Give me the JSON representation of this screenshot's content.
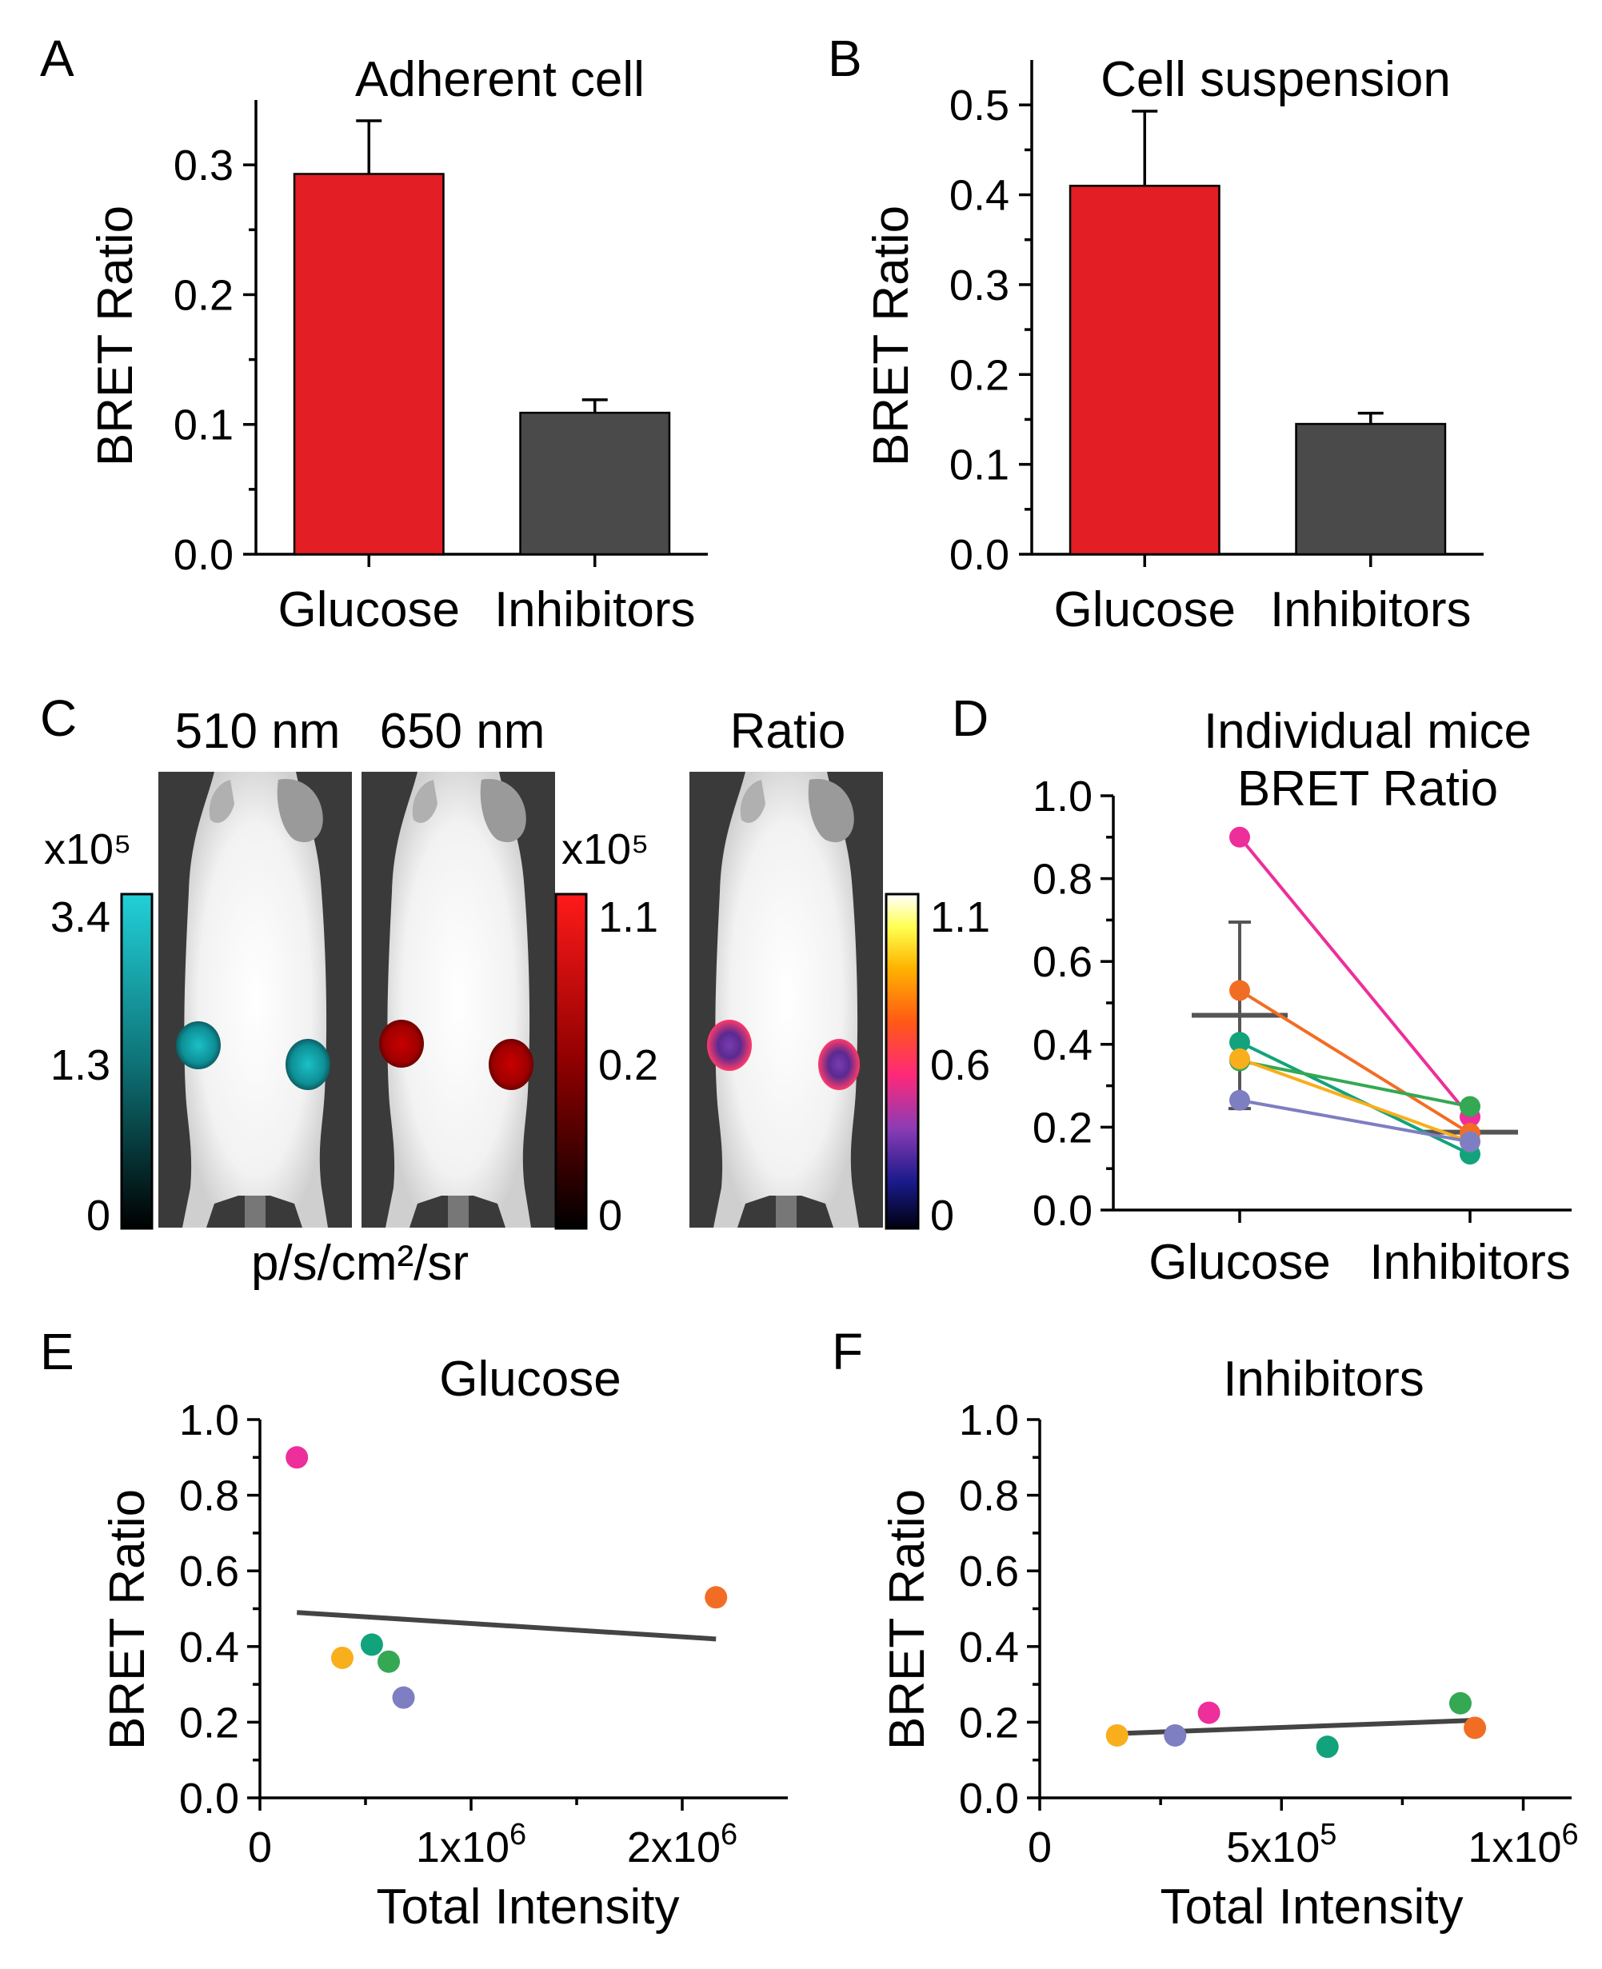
{
  "colors": {
    "glucose_bar": "#e31e24",
    "inhibitors_bar": "#4a4a4a",
    "fit_line": "#444444",
    "mouse_1": "#ee2e9a",
    "mouse_2": "#f26d24",
    "mouse_3": "#12a37c",
    "mouse_4": "#34a853",
    "mouse_5": "#f9ae1b",
    "mouse_6": "#7e7ec2",
    "cbar_510": "#20c8d0",
    "cbar_650": "#ff1a1a"
  },
  "chart_data": [
    {
      "panel": "A",
      "type": "bar",
      "title": "Adherent cell",
      "ylabel": "BRET Ratio",
      "xlabel": "",
      "categories": [
        "Glucose",
        "Inhibitors"
      ],
      "values": [
        0.293,
        0.109
      ],
      "errors": [
        0.041,
        0.01
      ],
      "ylim": [
        0,
        0.35
      ],
      "yticks": [
        "0.0",
        "0.1",
        "0.2",
        "0.3"
      ],
      "grid": false
    },
    {
      "panel": "B",
      "type": "bar",
      "title": "Cell suspension",
      "ylabel": "BRET Ratio",
      "xlabel": "",
      "categories": [
        "Glucose",
        "Inhibitors"
      ],
      "values": [
        0.41,
        0.145
      ],
      "errors": [
        0.083,
        0.012
      ],
      "ylim": [
        0,
        0.55
      ],
      "yticks": [
        "0.0",
        "0.1",
        "0.2",
        "0.3",
        "0.4",
        "0.5"
      ],
      "grid": false
    },
    {
      "panel": "C",
      "type": "image",
      "titles": [
        "510 nm",
        "650 nm",
        "Ratio"
      ],
      "colorbars": [
        {
          "exponent_label": "x10⁵",
          "ticks": [
            "3.4",
            "1.3",
            "0"
          ]
        },
        {
          "exponent_label": "x10⁵",
          "ticks": [
            "1.1",
            "0.2",
            "0"
          ]
        },
        {
          "exponent_label": "",
          "ticks": [
            "1.1",
            "0.6",
            "0"
          ]
        }
      ],
      "units": "p/s/cm²/sr"
    },
    {
      "panel": "D",
      "type": "line",
      "title": "Individual mice BRET Ratio",
      "title_lines": [
        "Individual mice",
        "BRET Ratio"
      ],
      "categories": [
        "Glucose",
        "Inhibitors"
      ],
      "ylim": [
        0,
        1.0
      ],
      "yticks": [
        "0.0",
        "0.2",
        "0.4",
        "0.6",
        "0.8",
        "1.0"
      ],
      "series": [
        {
          "color_key": "mouse_1",
          "values": [
            0.9,
            0.225
          ]
        },
        {
          "color_key": "mouse_2",
          "values": [
            0.53,
            0.185
          ]
        },
        {
          "color_key": "mouse_3",
          "values": [
            0.405,
            0.135
          ]
        },
        {
          "color_key": "mouse_4",
          "values": [
            0.36,
            0.25
          ]
        },
        {
          "color_key": "mouse_5",
          "values": [
            0.365,
            0.165
          ]
        },
        {
          "color_key": "mouse_6",
          "values": [
            0.265,
            0.165
          ]
        }
      ],
      "mean": [
        0.47,
        0.188
      ],
      "sd_glucose": [
        0.245,
        0.695
      ]
    },
    {
      "panel": "E",
      "type": "scatter",
      "title": "Glucose",
      "xlabel": "Total Intensity",
      "ylabel": "BRET Ratio",
      "xlim": [
        0,
        2500000
      ],
      "ylim": [
        0,
        1.0
      ],
      "xticks": [
        {
          "value": 0,
          "label": "0",
          "exp": ""
        },
        {
          "value": 1000000,
          "label": "1x10",
          "exp": "6"
        },
        {
          "value": 2000000,
          "label": "2x10",
          "exp": "6"
        }
      ],
      "yticks": [
        "0.0",
        "0.2",
        "0.4",
        "0.6",
        "0.8",
        "1.0"
      ],
      "points": [
        {
          "x": 175000,
          "y": 0.9,
          "color_key": "mouse_1"
        },
        {
          "x": 2160000,
          "y": 0.53,
          "color_key": "mouse_2"
        },
        {
          "x": 530000,
          "y": 0.405,
          "color_key": "mouse_3"
        },
        {
          "x": 610000,
          "y": 0.36,
          "color_key": "mouse_4"
        },
        {
          "x": 390000,
          "y": 0.37,
          "color_key": "mouse_5"
        },
        {
          "x": 680000,
          "y": 0.265,
          "color_key": "mouse_6"
        }
      ],
      "fit": {
        "x": [
          175000,
          2160000
        ],
        "y": [
          0.49,
          0.42
        ]
      }
    },
    {
      "panel": "F",
      "type": "scatter",
      "title": "Inhibitors",
      "xlabel": "Total Intensity",
      "ylabel": "BRET Ratio",
      "xlim": [
        0,
        1100000
      ],
      "ylim": [
        0,
        1.0
      ],
      "xticks": [
        {
          "value": 0,
          "label": "0",
          "exp": ""
        },
        {
          "value": 500000,
          "label": "5x10",
          "exp": "5"
        },
        {
          "value": 1000000,
          "label": "1x10",
          "exp": "6"
        }
      ],
      "yticks": [
        "0.0",
        "0.2",
        "0.4",
        "0.6",
        "0.8",
        "1.0"
      ],
      "points": [
        {
          "x": 350000,
          "y": 0.225,
          "color_key": "mouse_1"
        },
        {
          "x": 900000,
          "y": 0.185,
          "color_key": "mouse_2"
        },
        {
          "x": 595000,
          "y": 0.135,
          "color_key": "mouse_3"
        },
        {
          "x": 870000,
          "y": 0.25,
          "color_key": "mouse_4"
        },
        {
          "x": 160000,
          "y": 0.165,
          "color_key": "mouse_5"
        },
        {
          "x": 280000,
          "y": 0.165,
          "color_key": "mouse_6"
        }
      ],
      "fit": {
        "x": [
          160000,
          900000
        ],
        "y": [
          0.17,
          0.205
        ]
      }
    }
  ]
}
